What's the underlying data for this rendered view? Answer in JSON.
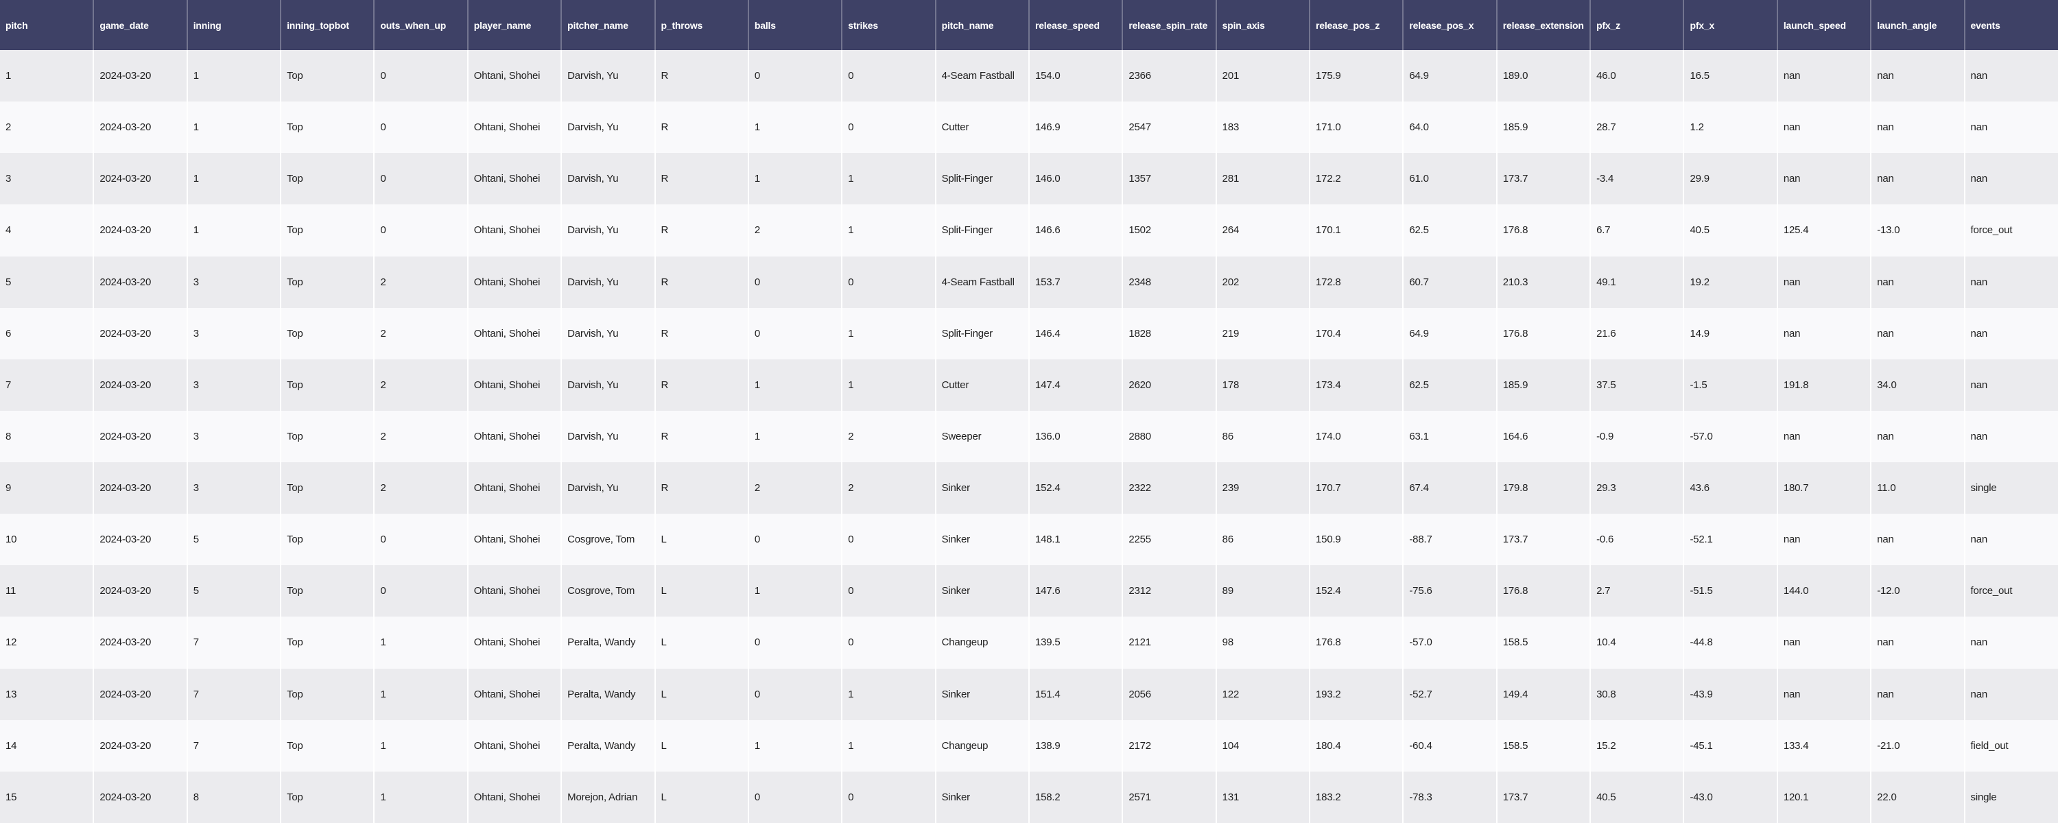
{
  "colors": {
    "header_bg": "#3e4166",
    "header_text": "#ffffff",
    "row_odd_bg": "#ebebee",
    "row_even_bg": "#f9f9fb",
    "cell_text": "#1f1f1f",
    "body_divider": "#ffffff"
  },
  "table": {
    "columns": [
      "pitch",
      "game_date",
      "inning",
      "inning_topbot",
      "outs_when_up",
      "player_name",
      "pitcher_name",
      "p_throws",
      "balls",
      "strikes",
      "pitch_name",
      "release_speed",
      "release_spin_rate",
      "spin_axis",
      "release_pos_z",
      "release_pos_x",
      "release_extension",
      "pfx_z",
      "pfx_x",
      "launch_speed",
      "launch_angle",
      "events"
    ],
    "rows": [
      [
        "1",
        "2024-03-20",
        "1",
        "Top",
        "0",
        "Ohtani, Shohei",
        "Darvish, Yu",
        "R",
        "0",
        "0",
        "4-Seam Fastball",
        "154.0",
        "2366",
        "201",
        "175.9",
        "64.9",
        "189.0",
        "46.0",
        "16.5",
        "nan",
        "nan",
        "nan"
      ],
      [
        "2",
        "2024-03-20",
        "1",
        "Top",
        "0",
        "Ohtani, Shohei",
        "Darvish, Yu",
        "R",
        "1",
        "0",
        "Cutter",
        "146.9",
        "2547",
        "183",
        "171.0",
        "64.0",
        "185.9",
        "28.7",
        "1.2",
        "nan",
        "nan",
        "nan"
      ],
      [
        "3",
        "2024-03-20",
        "1",
        "Top",
        "0",
        "Ohtani, Shohei",
        "Darvish, Yu",
        "R",
        "1",
        "1",
        "Split-Finger",
        "146.0",
        "1357",
        "281",
        "172.2",
        "61.0",
        "173.7",
        "-3.4",
        "29.9",
        "nan",
        "nan",
        "nan"
      ],
      [
        "4",
        "2024-03-20",
        "1",
        "Top",
        "0",
        "Ohtani, Shohei",
        "Darvish, Yu",
        "R",
        "2",
        "1",
        "Split-Finger",
        "146.6",
        "1502",
        "264",
        "170.1",
        "62.5",
        "176.8",
        "6.7",
        "40.5",
        "125.4",
        "-13.0",
        "force_out"
      ],
      [
        "5",
        "2024-03-20",
        "3",
        "Top",
        "2",
        "Ohtani, Shohei",
        "Darvish, Yu",
        "R",
        "0",
        "0",
        "4-Seam Fastball",
        "153.7",
        "2348",
        "202",
        "172.8",
        "60.7",
        "210.3",
        "49.1",
        "19.2",
        "nan",
        "nan",
        "nan"
      ],
      [
        "6",
        "2024-03-20",
        "3",
        "Top",
        "2",
        "Ohtani, Shohei",
        "Darvish, Yu",
        "R",
        "0",
        "1",
        "Split-Finger",
        "146.4",
        "1828",
        "219",
        "170.4",
        "64.9",
        "176.8",
        "21.6",
        "14.9",
        "nan",
        "nan",
        "nan"
      ],
      [
        "7",
        "2024-03-20",
        "3",
        "Top",
        "2",
        "Ohtani, Shohei",
        "Darvish, Yu",
        "R",
        "1",
        "1",
        "Cutter",
        "147.4",
        "2620",
        "178",
        "173.4",
        "62.5",
        "185.9",
        "37.5",
        "-1.5",
        "191.8",
        "34.0",
        "nan"
      ],
      [
        "8",
        "2024-03-20",
        "3",
        "Top",
        "2",
        "Ohtani, Shohei",
        "Darvish, Yu",
        "R",
        "1",
        "2",
        "Sweeper",
        "136.0",
        "2880",
        "86",
        "174.0",
        "63.1",
        "164.6",
        "-0.9",
        "-57.0",
        "nan",
        "nan",
        "nan"
      ],
      [
        "9",
        "2024-03-20",
        "3",
        "Top",
        "2",
        "Ohtani, Shohei",
        "Darvish, Yu",
        "R",
        "2",
        "2",
        "Sinker",
        "152.4",
        "2322",
        "239",
        "170.7",
        "67.4",
        "179.8",
        "29.3",
        "43.6",
        "180.7",
        "11.0",
        "single"
      ],
      [
        "10",
        "2024-03-20",
        "5",
        "Top",
        "0",
        "Ohtani, Shohei",
        "Cosgrove, Tom",
        "L",
        "0",
        "0",
        "Sinker",
        "148.1",
        "2255",
        "86",
        "150.9",
        "-88.7",
        "173.7",
        "-0.6",
        "-52.1",
        "nan",
        "nan",
        "nan"
      ],
      [
        "11",
        "2024-03-20",
        "5",
        "Top",
        "0",
        "Ohtani, Shohei",
        "Cosgrove, Tom",
        "L",
        "1",
        "0",
        "Sinker",
        "147.6",
        "2312",
        "89",
        "152.4",
        "-75.6",
        "176.8",
        "2.7",
        "-51.5",
        "144.0",
        "-12.0",
        "force_out"
      ],
      [
        "12",
        "2024-03-20",
        "7",
        "Top",
        "1",
        "Ohtani, Shohei",
        "Peralta, Wandy",
        "L",
        "0",
        "0",
        "Changeup",
        "139.5",
        "2121",
        "98",
        "176.8",
        "-57.0",
        "158.5",
        "10.4",
        "-44.8",
        "nan",
        "nan",
        "nan"
      ],
      [
        "13",
        "2024-03-20",
        "7",
        "Top",
        "1",
        "Ohtani, Shohei",
        "Peralta, Wandy",
        "L",
        "0",
        "1",
        "Sinker",
        "151.4",
        "2056",
        "122",
        "193.2",
        "-52.7",
        "149.4",
        "30.8",
        "-43.9",
        "nan",
        "nan",
        "nan"
      ],
      [
        "14",
        "2024-03-20",
        "7",
        "Top",
        "1",
        "Ohtani, Shohei",
        "Peralta, Wandy",
        "L",
        "1",
        "1",
        "Changeup",
        "138.9",
        "2172",
        "104",
        "180.4",
        "-60.4",
        "158.5",
        "15.2",
        "-45.1",
        "133.4",
        "-21.0",
        "field_out"
      ],
      [
        "15",
        "2024-03-20",
        "8",
        "Top",
        "1",
        "Ohtani, Shohei",
        "Morejon, Adrian",
        "L",
        "0",
        "0",
        "Sinker",
        "158.2",
        "2571",
        "131",
        "183.2",
        "-78.3",
        "173.7",
        "40.5",
        "-43.0",
        "120.1",
        "22.0",
        "single"
      ]
    ]
  }
}
